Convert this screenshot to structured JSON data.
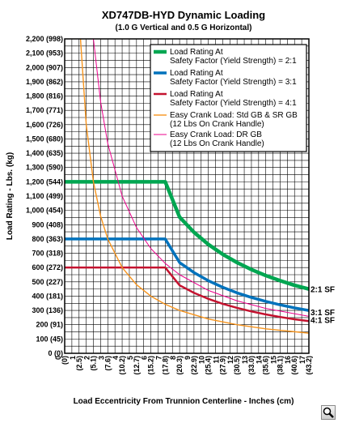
{
  "chart_data": {
    "type": "line",
    "title": "XD747DB-HYD Dynamic Loading",
    "subtitle": "(1.0 G Vertical and 0.5 G Horizontal)",
    "ylabel": "Load Rating - Lbs. (kg)",
    "xlabel": "Load Eccentricity From Trunnion Centerline - Inches (cm)",
    "xlim": [
      0,
      17
    ],
    "ylim": [
      0,
      2200
    ],
    "x_ticks": [
      "0",
      "(0)",
      "1",
      "(2.5)",
      "2",
      "(5.1)",
      "3",
      "(7.6)",
      "4",
      "(10.2)",
      "5",
      "(12.7)",
      "6",
      "(15.2)",
      "7",
      "(17.8)",
      "8",
      "(20.3)",
      "9",
      "(22.9)",
      "10",
      "(25.4)",
      "11",
      "(27.9)",
      "12",
      "(30.5)",
      "13",
      "(33.0)",
      "14",
      "(35.6)",
      "15",
      "(38.1)",
      "16",
      "(40.6)",
      "17",
      "(43.2)"
    ],
    "y_ticks": [
      "0 (0)",
      "100 (45)",
      "200 (91)",
      "300 (136)",
      "400 (181)",
      "500 (227)",
      "600 (272)",
      "700 (318)",
      "800 (363)",
      "900 (408)",
      "1,000 (454)",
      "1,100 (499)",
      "1,200 (544)",
      "1,300 (590)",
      "1,400 (635)",
      "1,500 (680)",
      "1,600 (726)",
      "1,700 (771)",
      "1,800 (816)",
      "1,900 (862)",
      "2,000 (907)",
      "2,100 (953)",
      "2,200 (998)"
    ],
    "grid": true,
    "legend_position": "top-right",
    "series": [
      {
        "name": "Load Rating At Safety Factor (Yield Strength) = 2:1",
        "color": "#00a651",
        "label": "2:1 SF",
        "x": [
          0,
          7,
          8,
          9,
          10,
          11,
          12,
          13,
          14,
          15,
          16,
          17
        ],
        "y": [
          1200,
          1200,
          953,
          847,
          762,
          693,
          635,
          586,
          544,
          508,
          476,
          450
        ]
      },
      {
        "name": "Load Rating At Safety Factor (Yield Strength) = 3:1",
        "color": "#0072bc",
        "label": "3:1 SF",
        "x": [
          0,
          7,
          8,
          9,
          10,
          11,
          12,
          13,
          14,
          15,
          16,
          17
        ],
        "y": [
          800,
          800,
          635,
          565,
          508,
          462,
          423,
          391,
          363,
          339,
          318,
          300
        ]
      },
      {
        "name": "Load Rating At Safety Factor (Yield Strength) = 4:1",
        "color": "#c4122f",
        "label": "4:1 SF",
        "x": [
          0,
          7,
          8,
          9,
          10,
          11,
          12,
          13,
          14,
          15,
          16,
          17
        ],
        "y": [
          600,
          600,
          476,
          423,
          381,
          346,
          318,
          293,
          272,
          254,
          238,
          225
        ]
      },
      {
        "name": "Easy Crank Load: Std GB & SR GB (12 Lbs On Crank Handle)",
        "color": "#f7941d",
        "label": "",
        "x": [
          1.1,
          1.5,
          2,
          2.5,
          3,
          4,
          5,
          6,
          7,
          8,
          10,
          12,
          14,
          17
        ],
        "y": [
          2200,
          1600,
          1200,
          960,
          800,
          600,
          480,
          400,
          343,
          300,
          240,
          200,
          171,
          141
        ]
      },
      {
        "name": "Easy Crank Load: DR GB (12 Lbs On Crank Handle)",
        "color": "#ec008c",
        "label": "",
        "x": [
          2.0,
          2.5,
          3,
          4,
          5,
          6,
          7,
          8,
          10,
          12,
          14,
          17
        ],
        "y": [
          2200,
          1760,
          1467,
          1100,
          880,
          733,
          629,
          550,
          440,
          367,
          314,
          259
        ]
      }
    ]
  }
}
